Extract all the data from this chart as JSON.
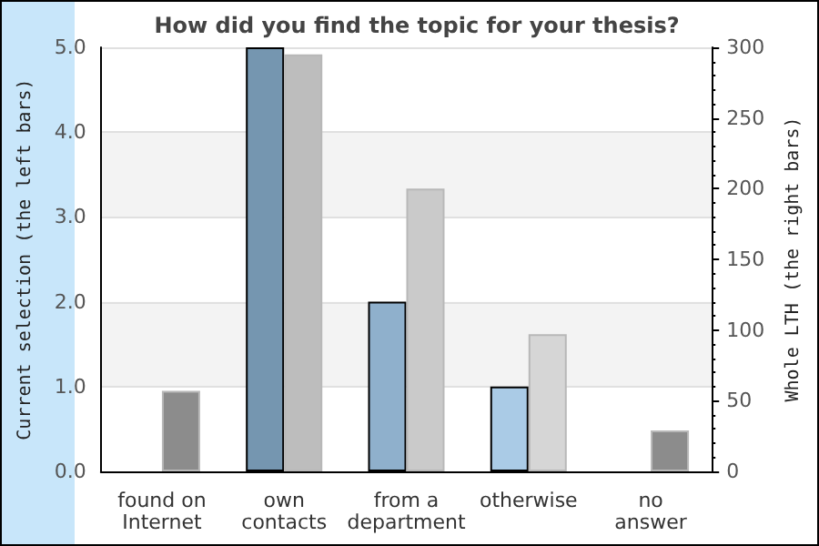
{
  "chart_data": {
    "type": "bar",
    "title": "How did you find the topic for your thesis?",
    "ylabel": "Current selection (the left bars)",
    "y2label": "Whole LTH (the right bars)",
    "categories": [
      "found on\nInternet",
      "own\ncontacts",
      "from a\ndepartment",
      "otherwise",
      "no\nanswer"
    ],
    "series": [
      {
        "values": [
          0,
          5,
          2,
          1,
          0
        ],
        "colors": [
          "#7596b0",
          "#7596b0",
          "#8fb0cc",
          "#aacbe6",
          "#aacbe6"
        ]
      },
      {
        "values": [
          57,
          295,
          200,
          97,
          29
        ],
        "axis": "y2",
        "colors": [
          "#8c8c8c",
          "#bdbdbd",
          "#cacaca",
          "#d6d6d6",
          "#8c8c8c"
        ]
      }
    ],
    "ylim": [
      0,
      5
    ],
    "yticks": [
      {
        "value": 0,
        "label": "0.0"
      },
      {
        "value": 1,
        "label": "1.0"
      },
      {
        "value": 2,
        "label": "2.0"
      },
      {
        "value": 3,
        "label": "3.0"
      },
      {
        "value": 4,
        "label": "4.0"
      },
      {
        "value": 5,
        "label": "5.0"
      }
    ],
    "y2lim": [
      0,
      300
    ],
    "y2ticks": [
      0,
      50,
      100,
      150,
      200,
      250,
      300
    ],
    "grid": "y"
  }
}
